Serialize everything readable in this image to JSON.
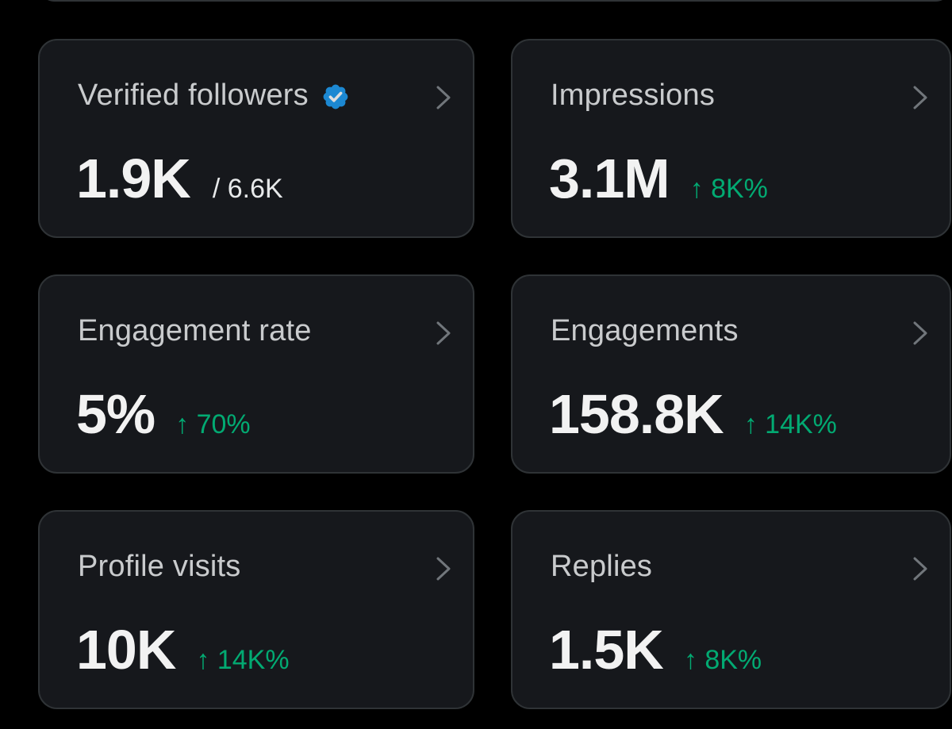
{
  "cards": [
    {
      "label": "Verified followers",
      "value": "1.9K",
      "sub": "/ 6.6K",
      "delta": "",
      "verified": true
    },
    {
      "label": "Impressions",
      "value": "3.1M",
      "sub": "",
      "delta": "↑ 8K%"
    },
    {
      "label": "Engagement rate",
      "value": "5%",
      "sub": "",
      "delta": "↑ 70%"
    },
    {
      "label": "Engagements",
      "value": "158.8K",
      "sub": "",
      "delta": "↑ 14K%"
    },
    {
      "label": "Profile visits",
      "value": "10K",
      "sub": "",
      "delta": "↑ 14K%"
    },
    {
      "label": "Replies",
      "value": "1.5K",
      "sub": "",
      "delta": "↑ 8K%"
    }
  ],
  "colors": {
    "background": "#000000",
    "card": "#16181c",
    "border": "#2f3336",
    "positive": "#00ba7c",
    "verified": "#1d9bf0"
  },
  "icons": {
    "verified": "verified-badge-icon",
    "chevron": "chevron-right-icon"
  }
}
